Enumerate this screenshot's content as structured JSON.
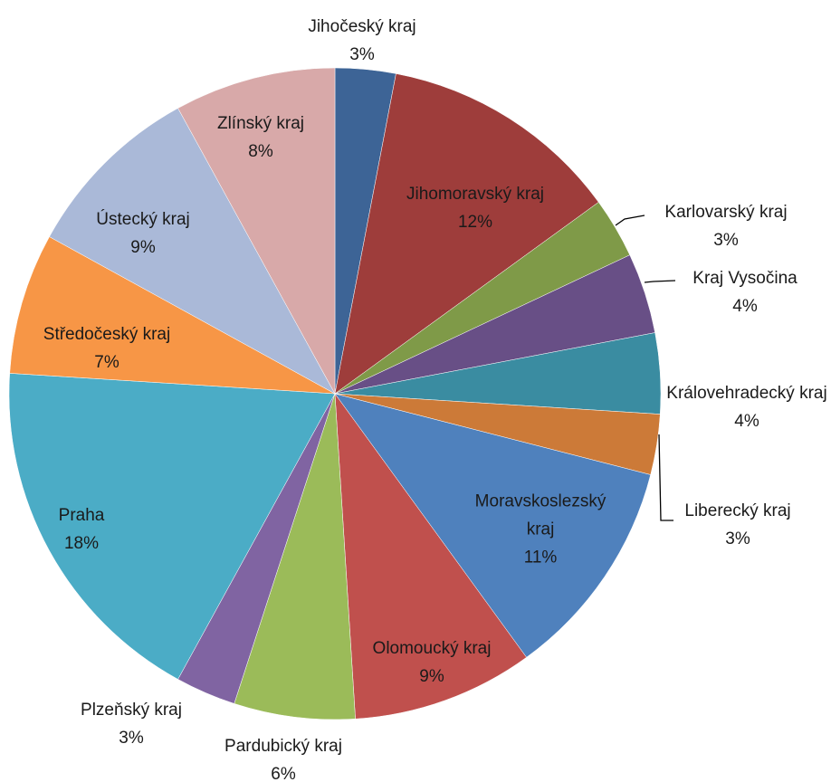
{
  "chart_data": {
    "type": "pie",
    "categories": [
      "Jihočeský kraj",
      "Jihomoravský kraj",
      "Karlovarský kraj",
      "Kraj Vysočina",
      "Královehradecký kraj",
      "Liberecký kraj",
      "Moravskoslezský kraj",
      "Olomoucký kraj",
      "Pardubický kraj",
      "Plzeňský kraj",
      "Praha",
      "Středočeský kraj",
      "Ústecký kraj",
      "Zlínský kraj"
    ],
    "values": [
      3,
      12,
      3,
      4,
      4,
      3,
      11,
      9,
      6,
      3,
      18,
      7,
      9,
      8
    ],
    "value_labels": [
      "3%",
      "12%",
      "3%",
      "4%",
      "4%",
      "3%",
      "11%",
      "9%",
      "6%",
      "3%",
      "18%",
      "7%",
      "9%",
      "8%"
    ],
    "colors": [
      "#3d6496",
      "#9e3d3b",
      "#7f9a48",
      "#684f86",
      "#3a8ca1",
      "#cc7a38",
      "#4f81bd",
      "#c0504d",
      "#9bbb59",
      "#8064a2",
      "#4bacc6",
      "#f79646",
      "#aab9d8",
      "#d8a9a9"
    ]
  }
}
